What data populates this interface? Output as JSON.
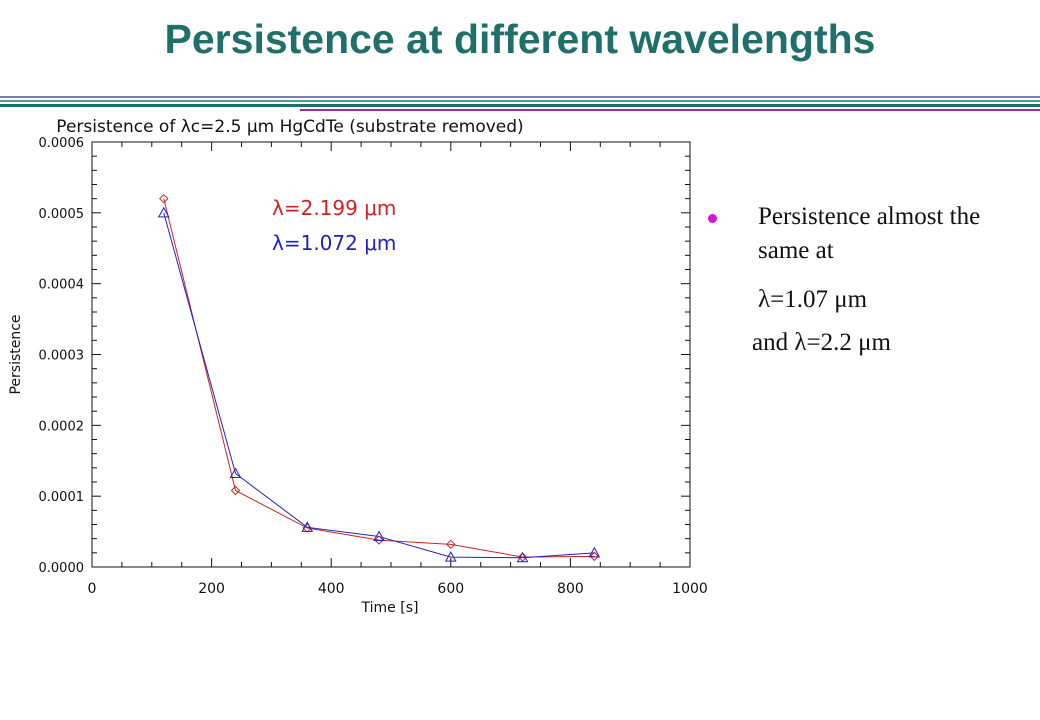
{
  "slide": {
    "title": "Persistence at different wavelengths",
    "title_color": "#1f6f6a",
    "rule_colors": [
      "#7d7db8",
      "#4c9a96",
      "#1f6f6a",
      "#9d2aa0"
    ]
  },
  "bullet": {
    "dot_color": "#d813d8",
    "lines": [
      "Persistence almost the same at",
      "λ=1.07 μm",
      "and λ=2.2 μm"
    ]
  },
  "chart_data": {
    "type": "line",
    "title": "Persistence of λc=2.5 μm HgCdTe (substrate removed)",
    "xlabel": "Time [s]",
    "ylabel": "Persistence",
    "xlim": [
      0,
      1000
    ],
    "ylim": [
      0,
      0.0006
    ],
    "x_ticks": [
      0,
      200,
      400,
      600,
      800,
      1000
    ],
    "x_tick_labels": [
      "0",
      "200",
      "400",
      "600",
      "800",
      "1000"
    ],
    "y_ticks": [
      0,
      0.0001,
      0.0002,
      0.0003,
      0.0004,
      0.0005,
      0.0006
    ],
    "y_tick_labels": [
      "0.0000",
      "0.0001",
      "0.0002",
      "0.0003",
      "0.0004",
      "0.0005",
      "0.0006"
    ],
    "grid": false,
    "legend_placement": "upper-middle",
    "series": [
      {
        "name": "λ=2.199 μm",
        "color": "#cc2222",
        "marker": "diamond",
        "x": [
          120,
          240,
          360,
          480,
          600,
          720,
          840
        ],
        "y": [
          0.00052,
          0.000108,
          5.5e-05,
          3.8e-05,
          3.2e-05,
          1.4e-05,
          1.5e-05
        ]
      },
      {
        "name": "λ=1.072 μm",
        "color": "#2222bb",
        "marker": "triangle",
        "x": [
          120,
          240,
          360,
          480,
          600,
          720,
          840
        ],
        "y": [
          0.0005,
          0.000132,
          5.6e-05,
          4.3e-05,
          1.4e-05,
          1.3e-05,
          2e-05
        ]
      }
    ]
  }
}
